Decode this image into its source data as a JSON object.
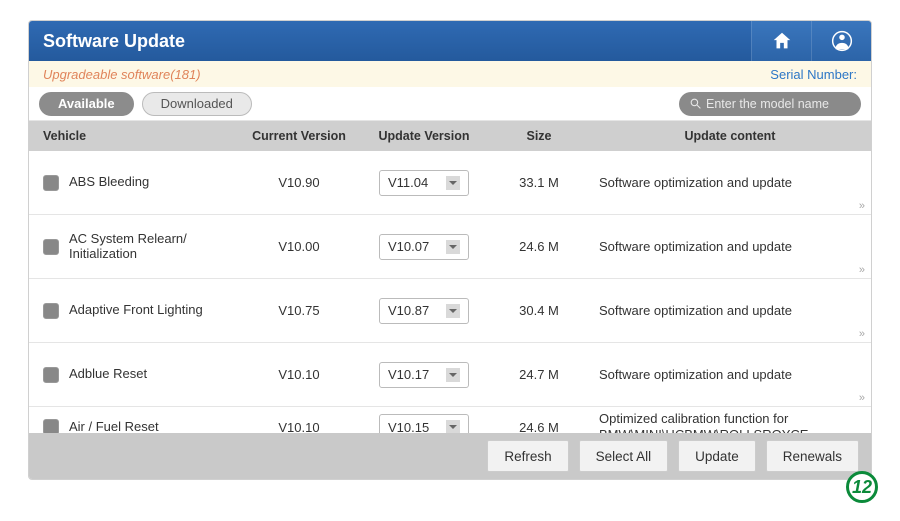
{
  "header": {
    "title": "Software Update"
  },
  "subbar": {
    "upgradeable_label": "Upgradeable software",
    "count_text": "(181)",
    "serial_label": "Serial Number:"
  },
  "tabs": {
    "available": "Available",
    "downloaded": "Downloaded"
  },
  "search": {
    "placeholder": "Enter the model name"
  },
  "columns": {
    "vehicle": "Vehicle",
    "current": "Current Version",
    "update": "Update Version",
    "size": "Size",
    "content": "Update content"
  },
  "rows": [
    {
      "vehicle": "ABS Bleeding",
      "current": "V10.90",
      "update": "V11.04",
      "size": "33.1 M",
      "content": "Software optimization and update"
    },
    {
      "vehicle": "AC System Relearn/\nInitialization",
      "current": "V10.00",
      "update": "V10.07",
      "size": "24.6 M",
      "content": "Software optimization and update"
    },
    {
      "vehicle": "Adaptive Front Lighting",
      "current": "V10.75",
      "update": "V10.87",
      "size": "30.4 M",
      "content": "Software optimization and update"
    },
    {
      "vehicle": "Adblue Reset",
      "current": "V10.10",
      "update": "V10.17",
      "size": "24.7 M",
      "content": "Software optimization and update"
    },
    {
      "vehicle": "Air / Fuel Reset",
      "current": "V10.10",
      "update": "V10.15",
      "size": "24.6 M",
      "content": "Optimized calibration function for BMW\\MINI\\HCBMW\\ROLLSROYCE."
    }
  ],
  "footer": {
    "refresh": "Refresh",
    "select_all": "Select All",
    "update": "Update",
    "renewals": "Renewals"
  },
  "badge": "12"
}
